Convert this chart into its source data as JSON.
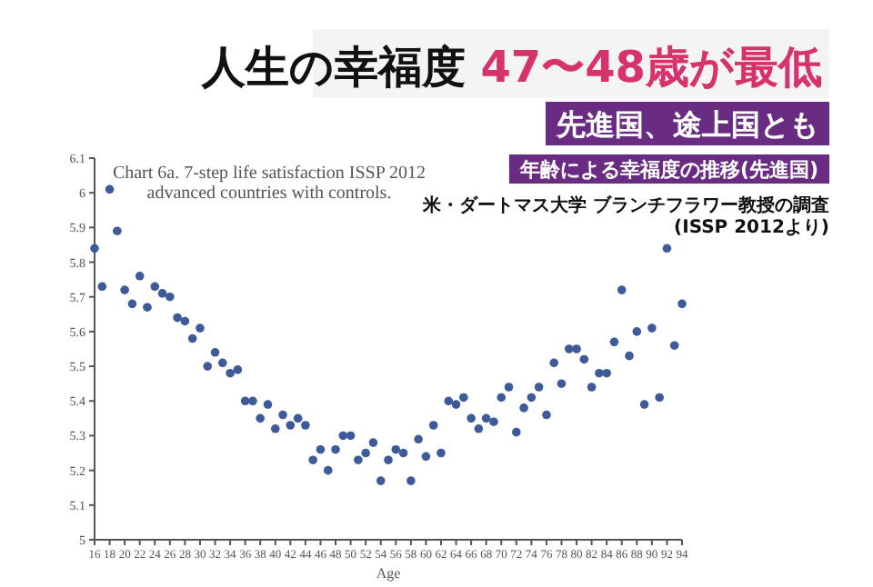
{
  "chart_data": {
    "type": "scatter",
    "title": "Chart 6a.  7-step life satisfaction ISSP 2012 advanced countries with controls.",
    "xlabel": "Age",
    "annotations": [
      "人生の幸福度",
      "47〜48歳が最低",
      "先進国、途上国とも",
      "年齢による幸福度の推移(先進国)",
      "米・ダートマス大学 ブランチフラワー教授の調査",
      "(ISSP 2012より)"
    ],
    "x": [
      16,
      17,
      18,
      19,
      20,
      21,
      22,
      23,
      24,
      25,
      26,
      27,
      28,
      29,
      30,
      31,
      32,
      33,
      34,
      35,
      36,
      37,
      38,
      39,
      40,
      41,
      42,
      43,
      44,
      45,
      46,
      47,
      48,
      49,
      50,
      51,
      52,
      53,
      54,
      55,
      56,
      57,
      58,
      59,
      60,
      61,
      62,
      63,
      64,
      65,
      66,
      67,
      68,
      69,
      70,
      71,
      72,
      73,
      74,
      75,
      76,
      77,
      78,
      79,
      80,
      81,
      82,
      83,
      84,
      85,
      86,
      87,
      88,
      89,
      90,
      91,
      92,
      93,
      94
    ],
    "series": [
      {
        "color": "#3d5a99",
        "values": [
          5.84,
          5.73,
          6.01,
          5.89,
          5.72,
          5.68,
          5.76,
          5.67,
          5.73,
          5.71,
          5.7,
          5.64,
          5.63,
          5.58,
          5.61,
          5.5,
          5.54,
          5.51,
          5.48,
          5.49,
          5.4,
          5.4,
          5.35,
          5.39,
          5.32,
          5.36,
          5.33,
          5.35,
          5.33,
          5.23,
          5.26,
          5.2,
          5.26,
          5.3,
          5.3,
          5.23,
          5.25,
          5.28,
          5.17,
          5.23,
          5.26,
          5.25,
          5.17,
          5.29,
          5.24,
          5.33,
          5.25,
          5.4,
          5.39,
          5.41,
          5.35,
          5.32,
          5.35,
          5.34,
          5.41,
          5.44,
          5.31,
          5.38,
          5.41,
          5.44,
          5.36,
          5.51,
          5.45,
          5.55,
          5.55,
          5.52,
          5.44,
          5.48,
          5.48,
          5.57,
          5.72,
          5.53,
          5.6,
          5.39,
          5.61,
          5.41,
          5.84,
          5.56,
          5.68
        ]
      }
    ],
    "xlim": [
      16,
      94
    ],
    "xticks": [
      16,
      18,
      20,
      22,
      24,
      26,
      28,
      30,
      32,
      34,
      36,
      38,
      40,
      42,
      44,
      46,
      48,
      50,
      52,
      54,
      56,
      58,
      60,
      62,
      64,
      66,
      68,
      70,
      72,
      74,
      76,
      78,
      80,
      82,
      84,
      86,
      88,
      90,
      92,
      94
    ],
    "ylim": [
      5,
      6.1
    ],
    "yticks": [
      5,
      5.1,
      5.2,
      5.3,
      5.4,
      5.5,
      5.6,
      5.7,
      5.8,
      5.9,
      6,
      6.1
    ],
    "marker": "circle",
    "grid": false
  }
}
